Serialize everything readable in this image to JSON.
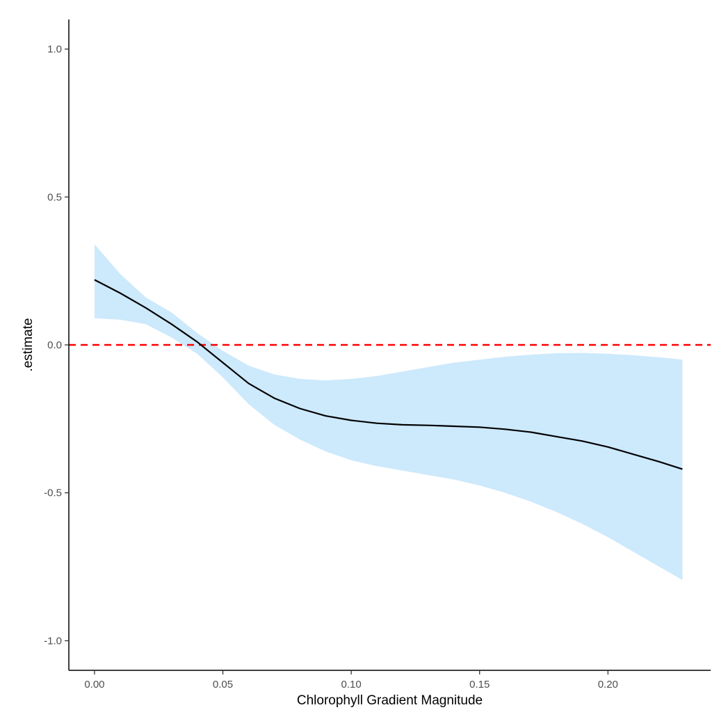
{
  "chart_data": {
    "type": "line",
    "title": "",
    "xlabel": "Chlorophyll Gradient Magnitude",
    "ylabel": ".estimate",
    "xlim": [
      -0.01,
      0.24
    ],
    "ylim": [
      -1.1,
      1.1
    ],
    "x_ticks": [
      0.0,
      0.05,
      0.1,
      0.15,
      0.2
    ],
    "x_tick_labels": [
      "0.00",
      "0.05",
      "0.10",
      "0.15",
      "0.20"
    ],
    "y_ticks": [
      1.0,
      0.5,
      0.0,
      -0.5,
      -1.0
    ],
    "y_tick_labels": [
      "1.0",
      "0.5",
      "0.0",
      "-0.5",
      "-1.0"
    ],
    "grid": false,
    "reference_line": {
      "y": 0.0,
      "style": "dashed",
      "color": "#ff0000"
    },
    "series": [
      {
        "type": "line",
        "color": "#000000",
        "x": [
          0.0,
          0.01,
          0.02,
          0.03,
          0.04,
          0.05,
          0.06,
          0.07,
          0.08,
          0.09,
          0.1,
          0.11,
          0.12,
          0.13,
          0.14,
          0.15,
          0.16,
          0.17,
          0.18,
          0.19,
          0.2,
          0.21,
          0.22,
          0.229
        ],
        "y": [
          0.22,
          0.175,
          0.125,
          0.07,
          0.01,
          -0.06,
          -0.13,
          -0.18,
          -0.215,
          -0.24,
          -0.255,
          -0.265,
          -0.27,
          -0.272,
          -0.275,
          -0.278,
          -0.285,
          -0.295,
          -0.31,
          -0.325,
          -0.345,
          -0.37,
          -0.395,
          -0.42
        ]
      }
    ],
    "band": {
      "color": "#cde9fc",
      "x": [
        0.0,
        0.01,
        0.02,
        0.03,
        0.04,
        0.05,
        0.06,
        0.07,
        0.08,
        0.09,
        0.1,
        0.11,
        0.12,
        0.13,
        0.14,
        0.15,
        0.16,
        0.17,
        0.18,
        0.19,
        0.2,
        0.21,
        0.22,
        0.229
      ],
      "upper": [
        0.34,
        0.24,
        0.16,
        0.11,
        0.04,
        -0.02,
        -0.07,
        -0.1,
        -0.115,
        -0.12,
        -0.115,
        -0.105,
        -0.09,
        -0.075,
        -0.06,
        -0.05,
        -0.04,
        -0.033,
        -0.028,
        -0.027,
        -0.03,
        -0.035,
        -0.042,
        -0.05
      ],
      "lower": [
        0.09,
        0.085,
        0.07,
        0.025,
        -0.03,
        -0.11,
        -0.2,
        -0.27,
        -0.32,
        -0.36,
        -0.39,
        -0.41,
        -0.425,
        -0.44,
        -0.455,
        -0.475,
        -0.5,
        -0.53,
        -0.565,
        -0.605,
        -0.65,
        -0.7,
        -0.75,
        -0.795
      ]
    }
  }
}
